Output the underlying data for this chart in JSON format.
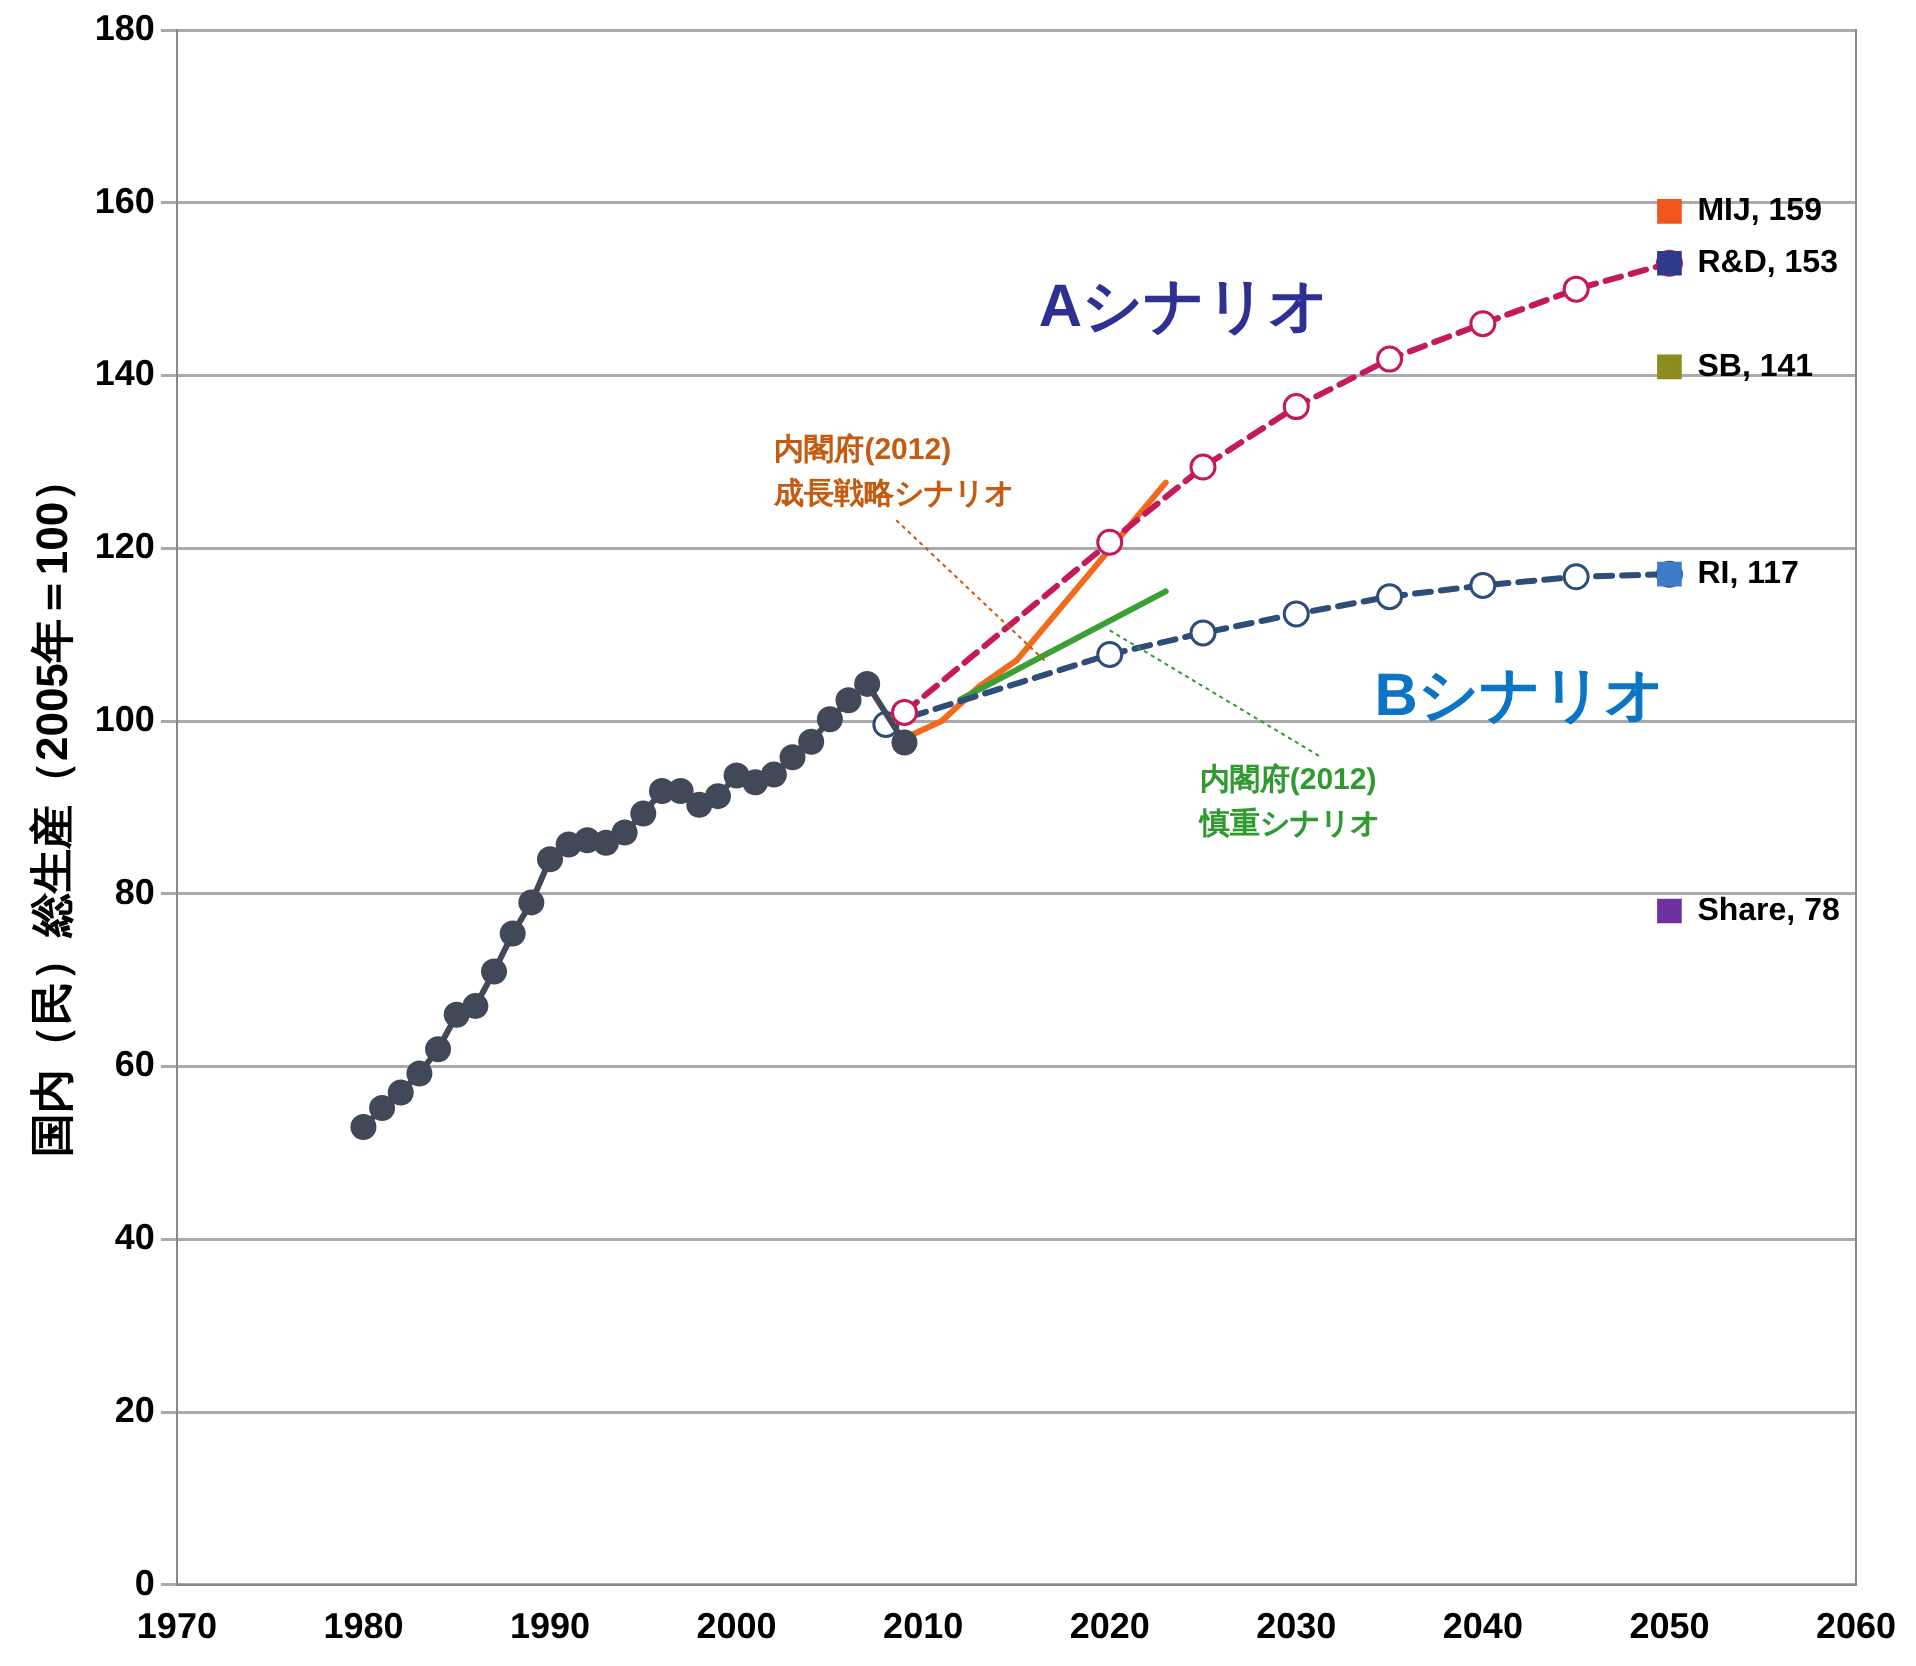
{
  "chart_data": {
    "type": "line",
    "ylabel": "国内（民）総生産（2005年＝100）",
    "xlim": [
      1970,
      2060
    ],
    "xticks": [
      1970,
      1980,
      1990,
      2000,
      2010,
      2020,
      2030,
      2040,
      2050,
      2060
    ],
    "ylim": [
      0,
      180
    ],
    "yticks": [
      0,
      20,
      40,
      60,
      80,
      100,
      120,
      140,
      160,
      180
    ],
    "grid": "y",
    "legend": false,
    "series": [
      {
        "color": "#414858",
        "marker": "circle",
        "line_style": "solid",
        "x": [
          1980,
          1981,
          1982,
          1983,
          1984,
          1985,
          1986,
          1987,
          1988,
          1989,
          1990,
          1991,
          1992,
          1993,
          1994,
          1995,
          1996,
          1997,
          1998,
          1999,
          2000,
          2001,
          2002,
          2003,
          2004,
          2005,
          2006,
          2007,
          2009
        ],
        "values": [
          53,
          55.2,
          57,
          59.2,
          62,
          66,
          67,
          71,
          75.4,
          79,
          84,
          85.7,
          86.2,
          85.9,
          87.1,
          89.3,
          91.9,
          91.9,
          90.3,
          91.3,
          93.7,
          92.9,
          93.8,
          95.8,
          97.6,
          100.2,
          102.4,
          104.3,
          97.5
        ]
      },
      {
        "color": "#c41a5c",
        "marker": "circle",
        "line_style": "dashed",
        "x": [
          2009,
          2020,
          2025,
          2030,
          2035,
          2040,
          2045,
          2050
        ],
        "values": [
          101,
          120.7,
          129.4,
          136.4,
          141.9,
          146,
          150,
          153
        ]
      },
      {
        "color": "#2e4d78",
        "marker": "circle",
        "line_style": "dashed",
        "x": [
          2008,
          2020,
          2025,
          2030,
          2035,
          2040,
          2045,
          2050
        ],
        "values": [
          99.6,
          107.7,
          110.2,
          112.4,
          114.4,
          115.7,
          116.7,
          117
        ]
      },
      {
        "color": "#3aa035",
        "marker": "none",
        "line_style": "solid",
        "x": [
          2012,
          2023
        ],
        "values": [
          102.5,
          115
        ]
      },
      {
        "color": "#f26a1b",
        "marker": "none",
        "line_style": "solid",
        "x": [
          2009,
          2011,
          2013,
          2015,
          2023
        ],
        "values": [
          98,
          100,
          104,
          107,
          127.6
        ]
      },
      {
        "type": "scatter",
        "color": "#f0561c",
        "marker": "square",
        "x": [
          2050
        ],
        "values": [
          159
        ],
        "value_labels": [
          "MIJ, 159"
        ]
      },
      {
        "type": "scatter",
        "color": "#2e3a8c",
        "marker": "square",
        "x": [
          2050
        ],
        "values": [
          153
        ],
        "value_labels": [
          "R&D, 153"
        ]
      },
      {
        "type": "scatter",
        "color": "#8c8c1e",
        "marker": "square",
        "x": [
          2050
        ],
        "values": [
          141
        ],
        "value_labels": [
          "SB, 141"
        ]
      },
      {
        "type": "scatter",
        "color": "#3d7cc9",
        "marker": "square",
        "x": [
          2050
        ],
        "values": [
          117
        ],
        "value_labels": [
          "RI, 117"
        ]
      },
      {
        "type": "scatter",
        "color": "#7030a0",
        "marker": "square",
        "x": [
          2050
        ],
        "values": [
          78
        ],
        "value_labels": [
          "Share, 78"
        ]
      }
    ],
    "annotations": [
      "Aシナリオ",
      "Bシナリオ",
      {
        "text": "内閣府(2012)\n成長戦略シナリオ",
        "x": 2016.5,
        "y": 107
      },
      {
        "text": "内閣府(2012)\n慎重シナリオ",
        "x": 2020,
        "y": 110.5
      }
    ]
  }
}
